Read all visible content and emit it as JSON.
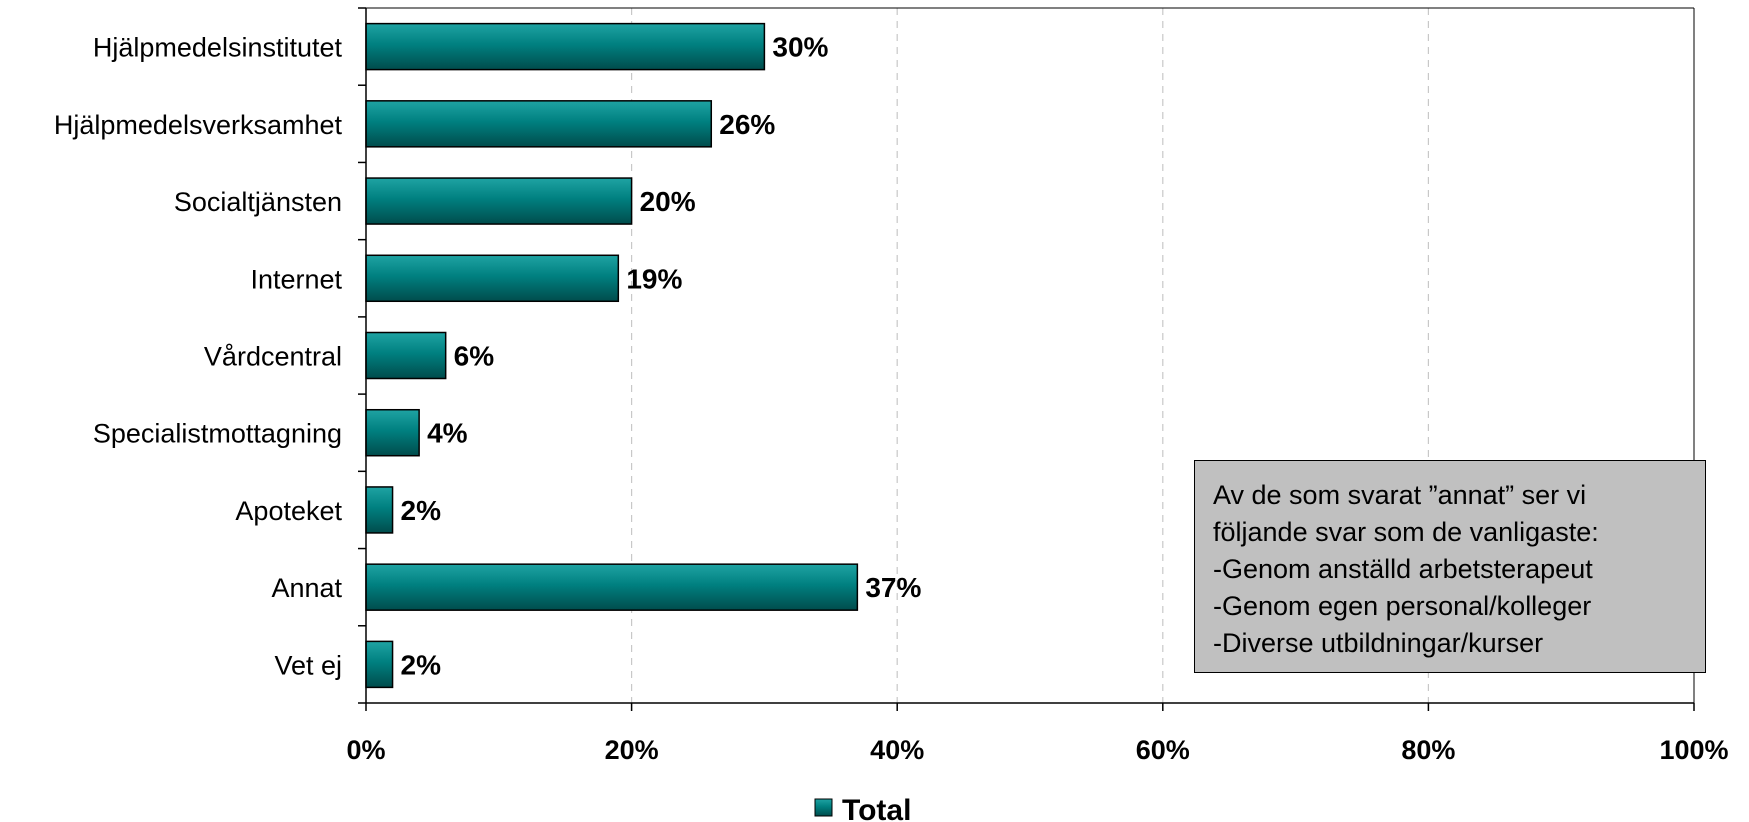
{
  "chart_data": {
    "type": "bar",
    "orientation": "horizontal",
    "categories": [
      "Hjälpmedelsinstitutet",
      "Hjälpmedelsverksamhet",
      "Socialtjänsten",
      "Internet",
      "Vårdcentral",
      "Specialistmottagning",
      "Apoteket",
      "Annat",
      "Vet ej"
    ],
    "series": [
      {
        "name": "Total",
        "values": [
          30,
          26,
          20,
          19,
          6,
          4,
          2,
          37,
          2
        ],
        "color": "#008080"
      }
    ],
    "value_labels": [
      "30%",
      "26%",
      "20%",
      "19%",
      "6%",
      "4%",
      "2%",
      "37%",
      "2%"
    ],
    "xlim": [
      0,
      100
    ],
    "x_ticks": [
      0,
      20,
      40,
      60,
      80,
      100
    ],
    "x_tick_labels": [
      "0%",
      "20%",
      "40%",
      "60%",
      "80%",
      "100%"
    ],
    "grid": "vertical dashed",
    "legend": {
      "position": "bottom",
      "label": "Total"
    },
    "annotation": {
      "lines": [
        "Av de som svarat ”annat” ser vi",
        "följande svar som de vanligaste:",
        "-Genom anställd arbetsterapeut",
        "-Genom egen personal/kolleger",
        "-Diverse utbildningar/kurser"
      ],
      "background": "#c0c0c0"
    }
  }
}
